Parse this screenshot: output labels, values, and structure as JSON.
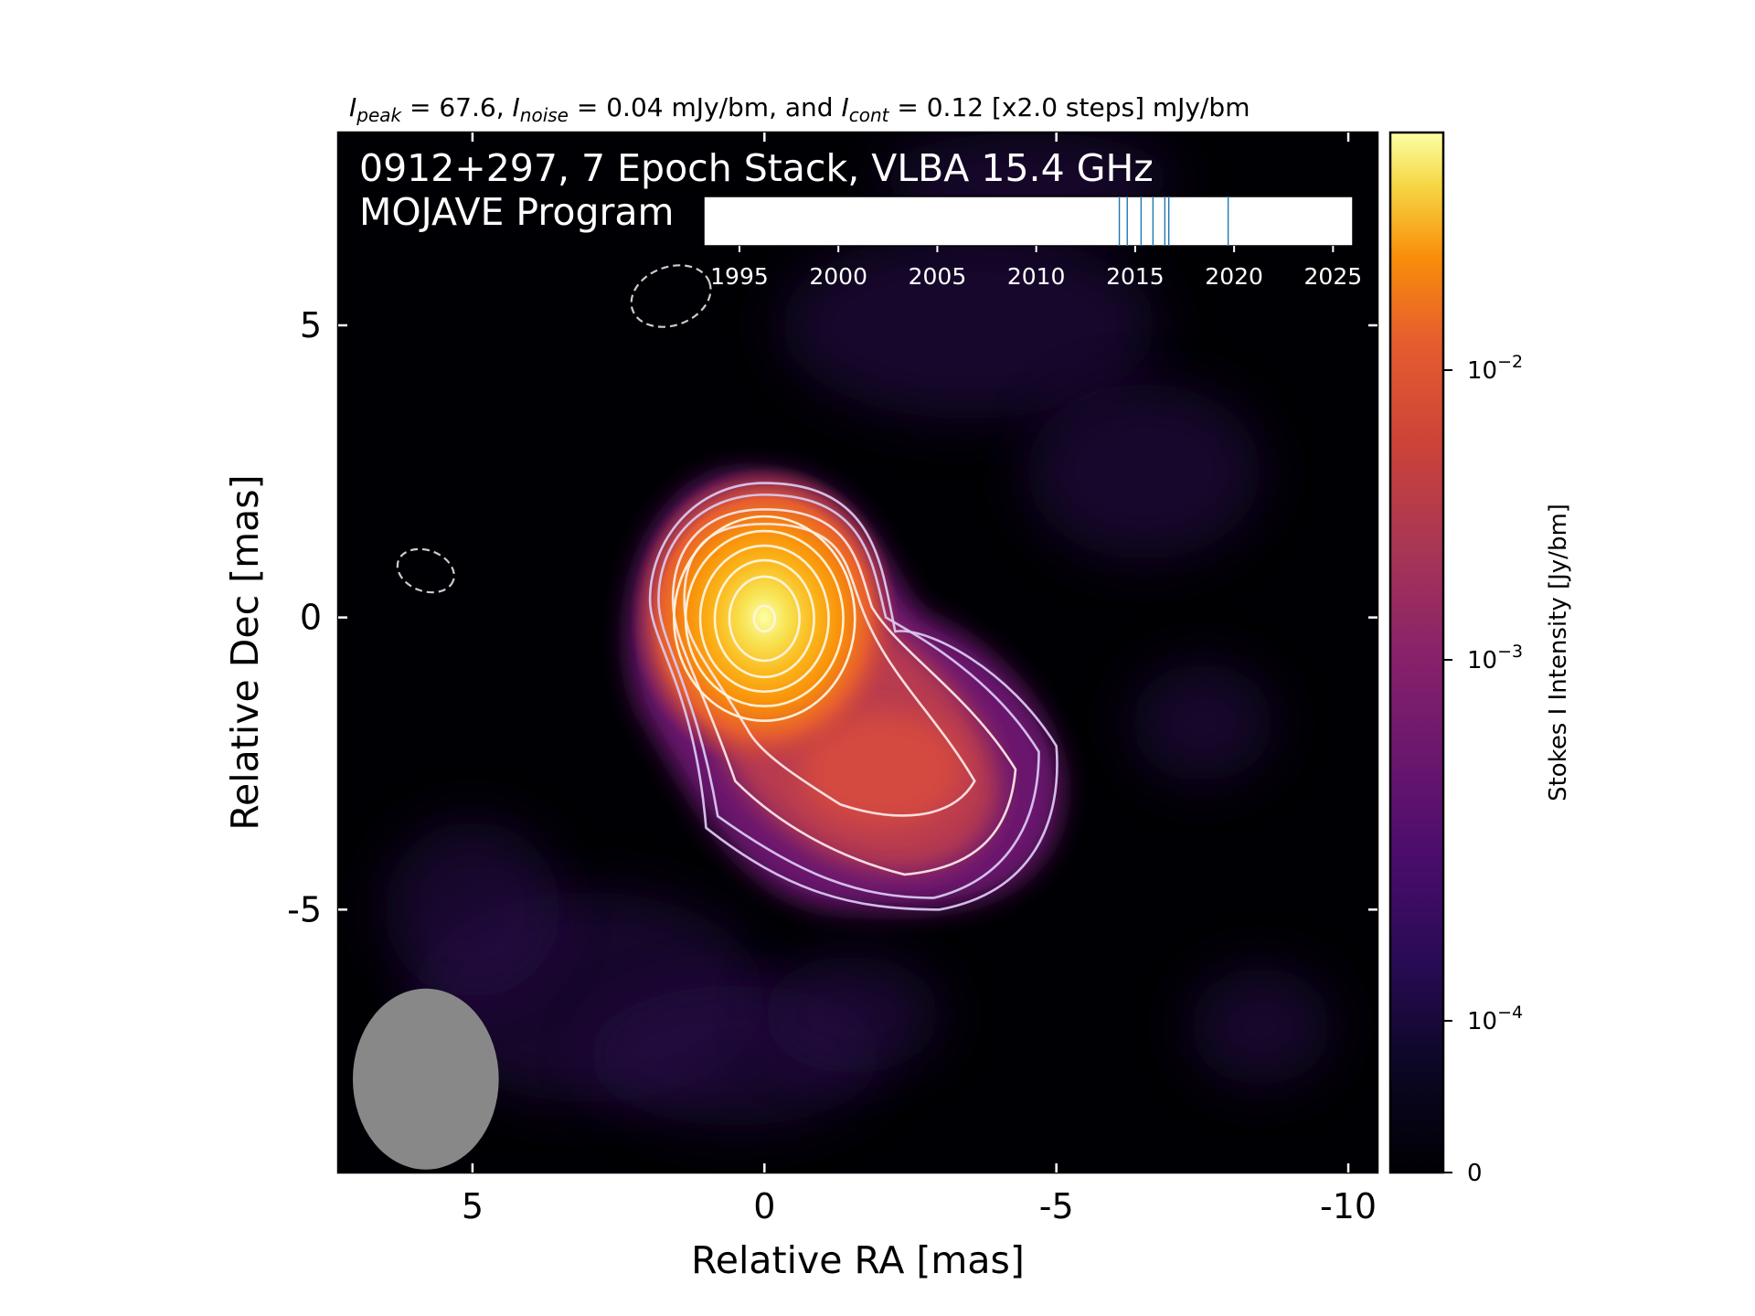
{
  "chart_data": {
    "type": "heatmap",
    "header": {
      "peak_symbol": "I",
      "peak_sub": "peak",
      "peak_text": " = 67.6, ",
      "noise_symbol": "I",
      "noise_sub": "noise",
      "noise_text": " = 0.04 mJy/bm, and ",
      "cont_symbol": "I",
      "cont_sub": "cont",
      "cont_text": " = 0.12 [x2.0 steps] mJy/bm"
    },
    "title_line1": "0912+297, 7 Epoch Stack, VLBA 15.4 GHz",
    "title_line2": "MOJAVE Program",
    "xlabel": "Relative RA [mas]",
    "ylabel": "Relative Dec [mas]",
    "xlim": [
      7.3,
      -10.5
    ],
    "ylim": [
      -9.5,
      8.3
    ],
    "x_ticks": [
      {
        "value": 5,
        "label": "5"
      },
      {
        "value": 0,
        "label": "0"
      },
      {
        "value": -5,
        "label": "-5"
      },
      {
        "value": -10,
        "label": "-10"
      }
    ],
    "y_ticks": [
      {
        "value": 5,
        "label": "5"
      },
      {
        "value": 0,
        "label": "0"
      },
      {
        "value": -5,
        "label": "-5"
      }
    ],
    "colorbar": {
      "label": "Stokes I Intensity [Jy/bm]",
      "scale": "symlog",
      "colormap": "inferno",
      "ticks": [
        {
          "value": 0.01,
          "base": "10",
          "exp": "−2"
        },
        {
          "value": 0.001,
          "base": "10",
          "exp": "−3"
        },
        {
          "value": 0.0001,
          "base": "10",
          "exp": "−4"
        },
        {
          "value": 0,
          "base": "0",
          "exp": ""
        }
      ]
    },
    "timeline": {
      "xlim": [
        1993.2,
        2026
      ],
      "ticks": [
        1995,
        2000,
        2005,
        2010,
        2015,
        2020,
        2025
      ],
      "epochs": [
        2014.2,
        2014.6,
        2015.3,
        2015.9,
        2016.5,
        2016.7,
        2019.7
      ]
    },
    "beam": {
      "major_mas": 3.1,
      "minor_mas": 2.5,
      "pa_deg": 0
    },
    "negative_contours": [
      {
        "x": 5.8,
        "y": 0.8,
        "major": 0.5,
        "minor": 0.35,
        "pa": 20
      },
      {
        "x": 1.6,
        "y": 5.5,
        "major": 0.7,
        "minor": 0.5,
        "pa": -20
      }
    ],
    "source": {
      "peak_x": 0.0,
      "peak_y": 0.0,
      "jet_direction": "southwest"
    },
    "contour_levels_count": 10
  }
}
